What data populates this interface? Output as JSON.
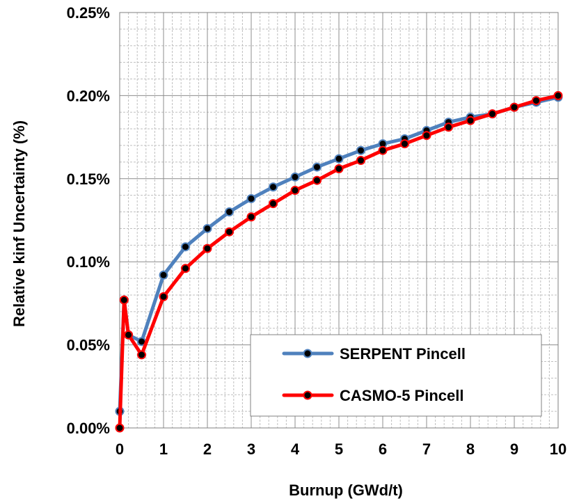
{
  "chart_data": {
    "type": "line",
    "title": "",
    "xlabel": "Burnup (GWd/t)",
    "ylabel": "Relative kinf Uncertainty (%)",
    "xlim": [
      0,
      10
    ],
    "ylim": [
      0,
      0.25
    ],
    "x_ticks": [
      "0",
      "1",
      "2",
      "3",
      "4",
      "5",
      "6",
      "7",
      "8",
      "9",
      "10"
    ],
    "y_ticks": [
      "0.00%",
      "0.05%",
      "0.10%",
      "0.15%",
      "0.20%",
      "0.25%"
    ],
    "grid": true,
    "legend_position": "bottom-right",
    "series": [
      {
        "name": "SERPENT Pincell",
        "color": "#4f81bd",
        "x": [
          0,
          0.1,
          0.2,
          0.5,
          1,
          1.5,
          2,
          2.5,
          3,
          3.5,
          4,
          4.5,
          5,
          5.5,
          6,
          6.5,
          7,
          7.5,
          8,
          8.5,
          9,
          9.5,
          10
        ],
        "y": [
          0.01,
          0.077,
          0.056,
          0.052,
          0.092,
          0.109,
          0.12,
          0.13,
          0.138,
          0.145,
          0.151,
          0.157,
          0.162,
          0.167,
          0.171,
          0.174,
          0.179,
          0.184,
          0.187,
          0.189,
          0.193,
          0.196,
          0.199
        ]
      },
      {
        "name": "CASMO-5 Pincell",
        "color": "#ff0000",
        "x": [
          0,
          0.1,
          0.2,
          0.5,
          1,
          1.5,
          2,
          2.5,
          3,
          3.5,
          4,
          4.5,
          5,
          5.5,
          6,
          6.5,
          7,
          7.5,
          8,
          8.5,
          9,
          9.5,
          10
        ],
        "y": [
          0.0,
          0.077,
          0.056,
          0.044,
          0.079,
          0.096,
          0.108,
          0.118,
          0.127,
          0.135,
          0.143,
          0.149,
          0.156,
          0.161,
          0.167,
          0.171,
          0.176,
          0.181,
          0.185,
          0.189,
          0.193,
          0.197,
          0.2
        ]
      }
    ]
  }
}
